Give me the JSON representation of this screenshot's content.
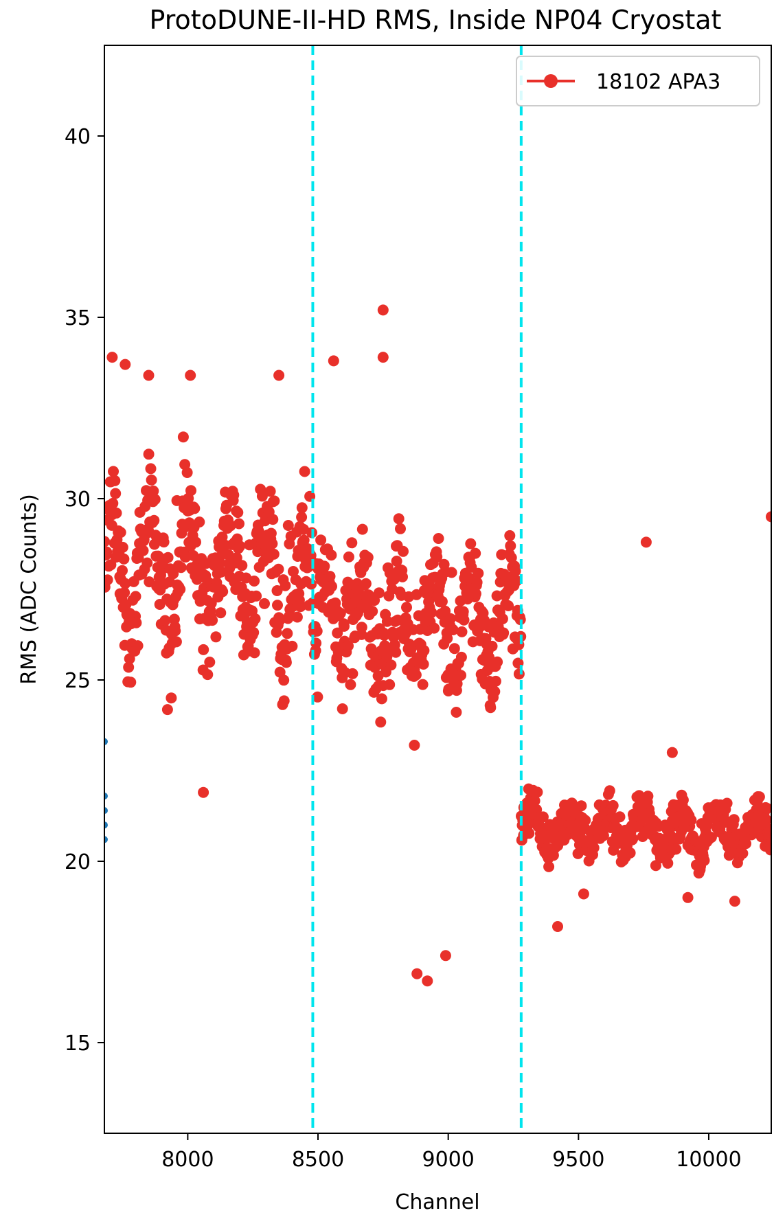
{
  "chart_data": {
    "type": "scatter",
    "title": "ProtoDUNE-II-HD RMS, Inside NP04 Cryostat",
    "xlabel": "Channel",
    "ylabel": "RMS (ADC Counts)",
    "xlim": [
      7680,
      10240
    ],
    "ylim": [
      12.5,
      42.5
    ],
    "xticks": [
      8000,
      8500,
      9000,
      9500,
      10000
    ],
    "yticks": [
      15,
      20,
      25,
      30,
      35,
      40
    ],
    "grid": false,
    "legend": {
      "position": "top-right",
      "entries": [
        "18102 APA3"
      ]
    },
    "vlines": [
      {
        "x": 8480,
        "style": "dashed",
        "color": "#00e5ee"
      },
      {
        "x": 9280,
        "style": "dashed",
        "color": "#00e5ee"
      }
    ],
    "series": [
      {
        "name": "18102 APA3",
        "color": "#e8302a",
        "marker": "circle",
        "segments": [
          {
            "x_start": 7680,
            "x_end": 8479,
            "center": 28.0,
            "spread": 2.4
          },
          {
            "x_start": 8480,
            "x_end": 9279,
            "center": 26.6,
            "spread": 2.2
          },
          {
            "x_start": 9280,
            "x_end": 10239,
            "center": 20.9,
            "spread": 0.8
          }
        ],
        "outliers": [
          {
            "x": 8750,
            "y": 35.2
          },
          {
            "x": 8750,
            "y": 33.9
          },
          {
            "x": 8560,
            "y": 33.8
          },
          {
            "x": 7710,
            "y": 33.9
          },
          {
            "x": 7760,
            "y": 33.7
          },
          {
            "x": 7850,
            "y": 33.4
          },
          {
            "x": 8010,
            "y": 33.4
          },
          {
            "x": 8350,
            "y": 33.4
          },
          {
            "x": 8060,
            "y": 21.9
          },
          {
            "x": 8870,
            "y": 23.2
          },
          {
            "x": 8880,
            "y": 16.9
          },
          {
            "x": 8920,
            "y": 16.7
          },
          {
            "x": 8990,
            "y": 17.4
          },
          {
            "x": 9420,
            "y": 18.2
          },
          {
            "x": 9760,
            "y": 28.8
          },
          {
            "x": 9860,
            "y": 23.0
          },
          {
            "x": 10240,
            "y": 29.5
          },
          {
            "x": 10100,
            "y": 18.9
          },
          {
            "x": 9920,
            "y": 19.0
          },
          {
            "x": 9520,
            "y": 19.1
          }
        ]
      },
      {
        "name": "",
        "color": "#1f77b4",
        "marker": "circle",
        "points": [
          {
            "x": 7680,
            "y": 23.3
          },
          {
            "x": 7680,
            "y": 21.8
          },
          {
            "x": 7680,
            "y": 21.4
          },
          {
            "x": 7680,
            "y": 21.0
          },
          {
            "x": 7680,
            "y": 20.6
          }
        ]
      }
    ]
  }
}
